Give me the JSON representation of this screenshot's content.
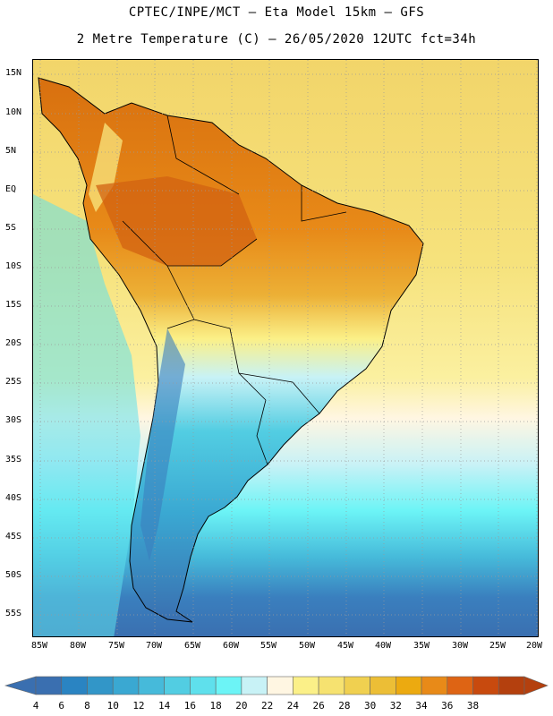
{
  "header": {
    "line1": "CPTEC/INPE/MCT –  Eta Model 15km – GFS",
    "line2": "2 Metre Temperature (C) – 26/05/2020 12UTC fct=34h"
  },
  "latitude_labels": [
    "15N",
    "10N",
    "5N",
    "EQ",
    "5S",
    "10S",
    "15S",
    "20S",
    "25S",
    "30S",
    "35S",
    "40S",
    "45S",
    "50S",
    "55S"
  ],
  "longitude_labels": [
    "85W",
    "80W",
    "75W",
    "70W",
    "65W",
    "60W",
    "55W",
    "50W",
    "45W",
    "40W",
    "35W",
    "30W",
    "25W",
    "20W"
  ],
  "legend": {
    "values": [
      "4",
      "6",
      "8",
      "10",
      "12",
      "14",
      "16",
      "18",
      "20",
      "22",
      "24",
      "26",
      "28",
      "30",
      "32",
      "34",
      "36",
      "38"
    ],
    "colors": [
      "#3a6fb0",
      "#2a84c2",
      "#3296c8",
      "#3aa8d2",
      "#46bada",
      "#52cde2",
      "#5fe0ec",
      "#6cf4f6",
      "#c8f2f6",
      "#fff6e2",
      "#fbf088",
      "#f6e270",
      "#f0d050",
      "#ecbe36",
      "#ecaa10",
      "#e88a18",
      "#de6414",
      "#c84a0e",
      "#b4400e"
    ]
  }
}
